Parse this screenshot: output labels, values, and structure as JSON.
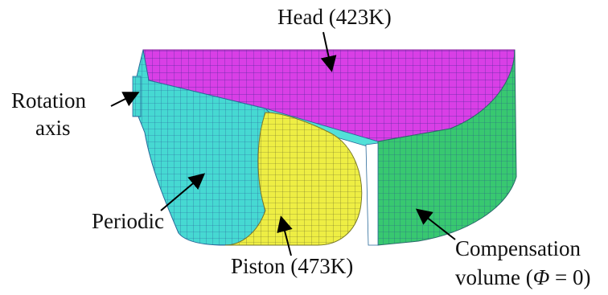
{
  "labels": {
    "head": "Head (423K)",
    "rotation_line1": "Rotation",
    "rotation_line2": "axis",
    "periodic": "Periodic",
    "piston": "Piston (473K)",
    "compensation_line1": "Compensation",
    "compensation_line2_prefix": "volume (",
    "compensation_line2_symbol": "Φ",
    "compensation_line2_suffix": " = 0)"
  },
  "colors": {
    "head_surface": "#e033e8",
    "periodic_surface": "#3fd8d0",
    "piston_surface": "#f2f23a",
    "compensation_surface": "#33cc66",
    "mesh_line": "#1a2a80",
    "arrow": "#000000",
    "text": "#111111"
  }
}
